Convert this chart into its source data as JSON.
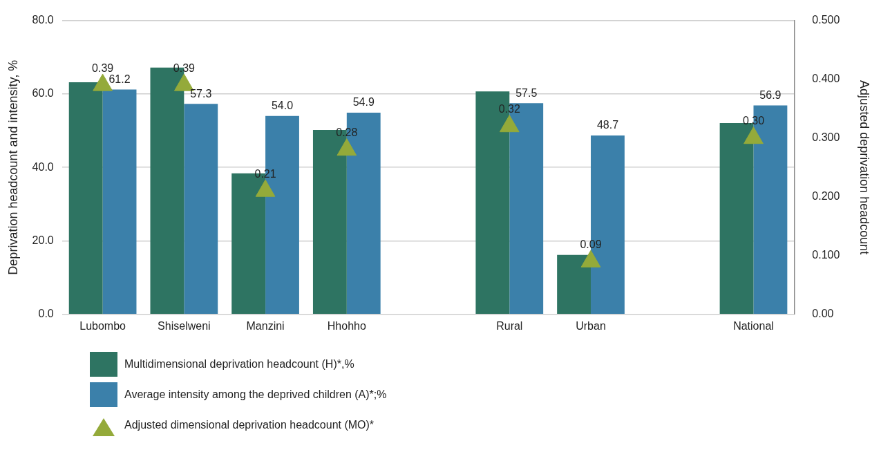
{
  "chart_data": {
    "type": "bar",
    "ylabel": "Deprivation headcount and intensity, %",
    "y2label": "Adjusted deprivation headcount",
    "categories": [
      "Lubombo",
      "Shiselweni",
      "Manzini",
      "Hhohho",
      null,
      "Rural",
      "Urban",
      null,
      "National"
    ],
    "series": [
      {
        "name": "Multidimensional deprivation headcount (H)*,%",
        "color": "#2e7462",
        "values": [
          63.2,
          67.2,
          38.4,
          50.2,
          null,
          60.7,
          16.2,
          null,
          52.1
        ]
      },
      {
        "name": "Average intensity among the deprived children (A)*;%",
        "color": "#3b80aa",
        "values": [
          61.2,
          57.3,
          54.0,
          54.9,
          null,
          57.5,
          48.7,
          null,
          56.9
        ],
        "value_labels": [
          "61.2",
          "57.3",
          "54.0",
          "54.9",
          null,
          "57.5",
          "48.7",
          null,
          "56.9"
        ]
      },
      {
        "name": "Adjusted dimensional deprivation headcount (MO)*",
        "type": "scatter",
        "axis": "y2",
        "marker": "triangle",
        "color": "#94aa3a",
        "values": [
          0.39,
          0.39,
          0.21,
          0.28,
          null,
          0.32,
          0.09,
          null,
          0.3
        ],
        "value_labels": [
          "0.39",
          "0.39",
          "0.21",
          "0.28",
          null,
          "0.32",
          "0.09",
          null,
          "0.30"
        ]
      }
    ],
    "ylim": [
      0,
      80
    ],
    "yticks": [
      {
        "value": 0,
        "label": "0.0"
      },
      {
        "value": 20,
        "label": "20.0"
      },
      {
        "value": 40,
        "label": "40.0"
      },
      {
        "value": 60,
        "label": "60.0"
      },
      {
        "value": 80,
        "label": "80.0"
      }
    ],
    "y2lim": [
      0,
      0.5
    ],
    "y2ticks": [
      {
        "value": 0,
        "label": "0.00"
      },
      {
        "value": 0.1,
        "label": "0.100"
      },
      {
        "value": 0.2,
        "label": "0.200"
      },
      {
        "value": 0.3,
        "label": "0.300"
      },
      {
        "value": 0.4,
        "label": "0.400"
      },
      {
        "value": 0.5,
        "label": "0.500"
      }
    ],
    "grid": "y",
    "legend": "bottom"
  }
}
